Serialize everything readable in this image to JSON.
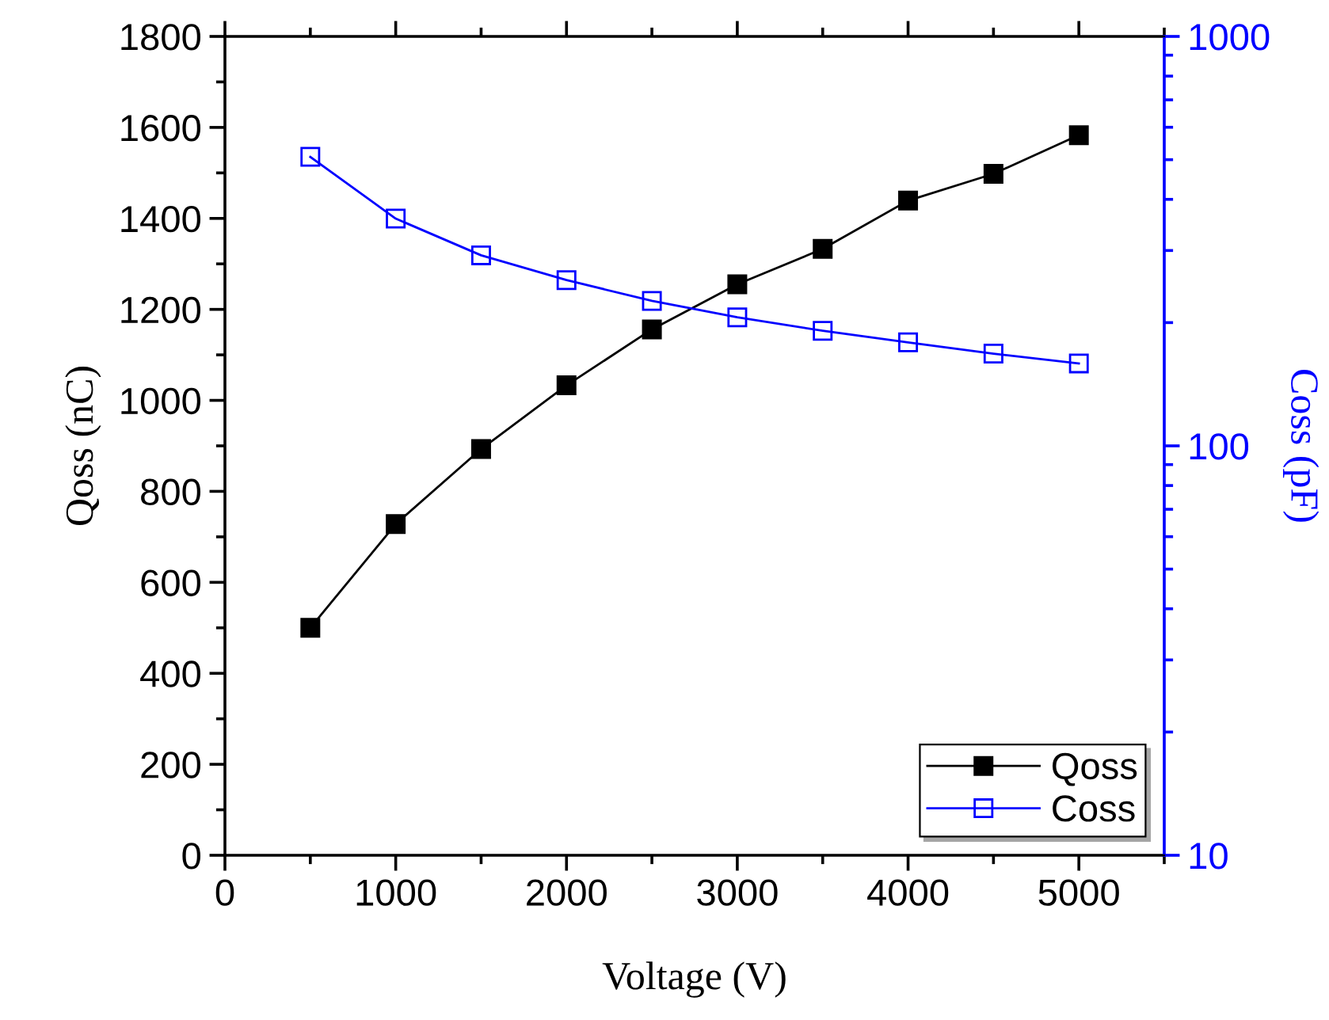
{
  "chart_data": {
    "type": "line",
    "xlabel": "Voltage (V)",
    "ylabel": "Qoss (nC)",
    "y2label": "Coss (pF)",
    "x": [
      500,
      1000,
      1500,
      2000,
      2500,
      3000,
      3500,
      4000,
      4500,
      5000
    ],
    "series": [
      {
        "name": "Qoss",
        "color": "#000000",
        "marker": "square",
        "values": [
          500,
          728,
          893,
          1033,
          1156,
          1255,
          1333,
          1439,
          1498,
          1583
        ]
      },
      {
        "name": "Coss",
        "color": "#0000ff",
        "marker": "square",
        "axis": "y2",
        "values": [
          508,
          359,
          292,
          254,
          226,
          206,
          191,
          179,
          168,
          159
        ]
      }
    ],
    "xlim": [
      0,
      5500
    ],
    "xticks": [
      0,
      1000,
      2000,
      3000,
      4000,
      5000
    ],
    "ylim": [
      0,
      1800
    ],
    "yticks": [
      0,
      200,
      400,
      600,
      800,
      1000,
      1200,
      1400,
      1600,
      1800
    ],
    "y2lim": [
      10,
      1000
    ],
    "y2ticks": [
      10,
      100,
      1000
    ],
    "log": "y2",
    "grid": false,
    "legend": "bottom right",
    "line_style": "solid"
  }
}
